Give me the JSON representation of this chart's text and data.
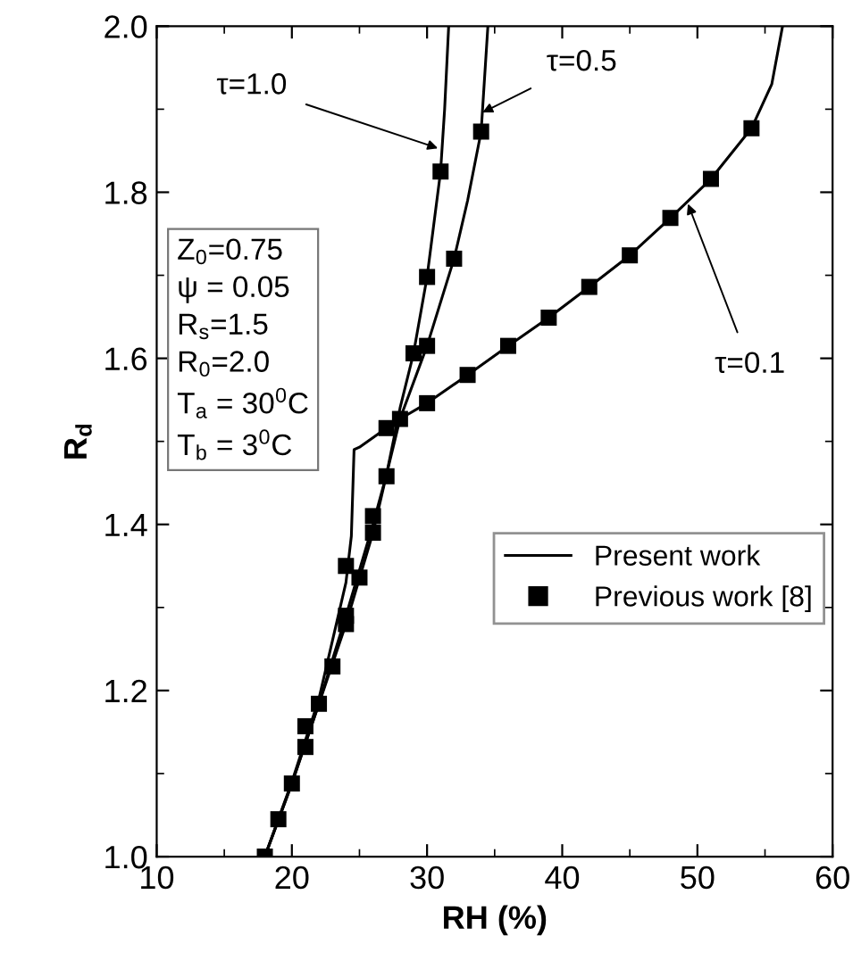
{
  "chart_data": {
    "type": "line",
    "xlabel": "RH (%)",
    "ylabel": "R$_{d}$",
    "xlim": [
      10,
      60
    ],
    "xticks": [
      10,
      20,
      30,
      40,
      50,
      60
    ],
    "ylim": [
      1.0,
      2.0
    ],
    "yticks": [
      {
        "value": 1.0,
        "label": "1.0"
      },
      {
        "value": 1.2,
        "label": "1.2"
      },
      {
        "value": 1.4,
        "label": "1.4"
      },
      {
        "value": 1.6,
        "label": "1.6"
      },
      {
        "value": 1.8,
        "label": "1.8"
      },
      {
        "value": 2.0,
        "label": "2.0"
      }
    ],
    "grid": false,
    "legend": "right",
    "line_style": "solid",
    "series": [
      {
        "name": "Present work",
        "color": "#000000",
        "marker": "none",
        "x": [
          18,
          19,
          20,
          21,
          22,
          23,
          24,
          24.4,
          24.6,
          25,
          27,
          28,
          30,
          33,
          36,
          39,
          42,
          45,
          48,
          51,
          54,
          55.5,
          56.3
        ],
        "values": [
          1.0,
          1.045,
          1.09,
          1.14,
          1.19,
          1.26,
          1.33,
          1.386,
          1.49,
          1.493,
          1.516,
          1.527,
          1.546,
          1.58,
          1.615,
          1.649,
          1.686,
          1.724,
          1.769,
          1.816,
          1.877,
          1.93,
          2.0
        ]
      },
      {
        "color": "#000000",
        "marker": "none",
        "x": [
          18,
          20,
          22,
          24,
          26,
          27,
          28,
          29,
          30,
          31,
          31.3,
          31.6
        ],
        "values": [
          1.0,
          1.088,
          1.184,
          1.28,
          1.39,
          1.46,
          1.54,
          1.606,
          1.698,
          1.825,
          1.9,
          2.0
        ]
      },
      {
        "color": "#000000",
        "marker": "none",
        "x": [
          18,
          20,
          22,
          24,
          26,
          27,
          28,
          30,
          32,
          33,
          34,
          34.5
        ],
        "values": [
          1.0,
          1.088,
          1.184,
          1.29,
          1.4,
          1.46,
          1.527,
          1.615,
          1.72,
          1.79,
          1.873,
          2.0
        ]
      },
      {
        "name": "Previous work [8]",
        "type": "scatter",
        "color": "#000000",
        "marker": "square",
        "x": [
          24,
          27,
          28,
          30,
          33,
          36,
          39,
          42,
          45,
          48,
          51,
          54
        ],
        "values": [
          1.35,
          1.516,
          1.527,
          1.546,
          1.58,
          1.615,
          1.649,
          1.686,
          1.724,
          1.769,
          1.816,
          1.877
        ]
      },
      {
        "type": "scatter",
        "color": "#000000",
        "marker": "square",
        "x": [
          18,
          19,
          21,
          22,
          24,
          26,
          29,
          30,
          31
        ],
        "values": [
          1.0,
          1.045,
          1.157,
          1.184,
          1.28,
          1.39,
          1.606,
          1.698,
          1.825
        ]
      },
      {
        "type": "scatter",
        "color": "#000000",
        "marker": "square",
        "x": [
          20,
          21,
          23,
          24,
          25,
          26,
          27,
          30,
          32,
          34
        ],
        "values": [
          1.088,
          1.132,
          1.229,
          1.29,
          1.336,
          1.41,
          1.458,
          1.615,
          1.72,
          1.873
        ]
      }
    ],
    "annotations": [
      {
        "text": "τ=1.0",
        "x": 30.8,
        "y": 1.853
      },
      {
        "text": "τ=0.5",
        "x": 34.1,
        "y": 1.896
      },
      {
        "text": "τ=0.1",
        "x": 49.3,
        "y": 1.786
      },
      "Z$_{0}$=0.75\nψ = 0.05\nR$_{s}$=1.5\nR$_{0}$=2.0\nT$_{a}$ = 30$^{0}$C\nT$_{b}$ = 3$^{0}$C"
    ]
  }
}
